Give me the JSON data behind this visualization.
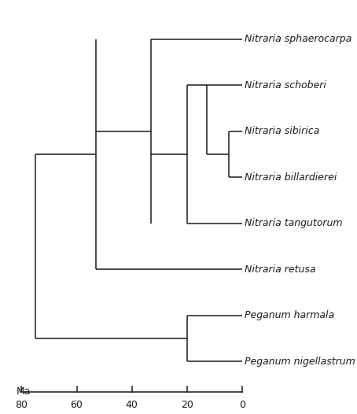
{
  "taxa": [
    "Nitraria sphaerocarpa",
    "Nitraria schoberi",
    "Nitraria sibirica",
    "Nitraria billardierei",
    "Nitraria tangutorum",
    "Nitraria retusa",
    "Peganum harmala",
    "Peganum nigellastrum"
  ],
  "taxa_y": [
    8,
    7,
    6,
    5,
    4,
    3,
    2,
    1
  ],
  "segments": [
    [
      [
        0,
        33
      ],
      [
        8,
        8
      ]
    ],
    [
      [
        0,
        13
      ],
      [
        7,
        7
      ]
    ],
    [
      [
        0,
        5
      ],
      [
        6,
        6
      ]
    ],
    [
      [
        0,
        5
      ],
      [
        5,
        5
      ]
    ],
    [
      [
        0,
        20
      ],
      [
        4,
        4
      ]
    ],
    [
      [
        0,
        53
      ],
      [
        3,
        3
      ]
    ],
    [
      [
        0,
        20
      ],
      [
        2,
        2
      ]
    ],
    [
      [
        0,
        20
      ],
      [
        1,
        1
      ]
    ],
    [
      [
        5,
        5
      ],
      [
        5,
        6
      ]
    ],
    [
      [
        5,
        13
      ],
      [
        5.5,
        5.5
      ]
    ],
    [
      [
        13,
        13
      ],
      [
        5.5,
        7
      ]
    ],
    [
      [
        13,
        20
      ],
      [
        7,
        7
      ]
    ],
    [
      [
        20,
        20
      ],
      [
        4,
        7
      ]
    ],
    [
      [
        20,
        33
      ],
      [
        5.5,
        5.5
      ]
    ],
    [
      [
        33,
        33
      ],
      [
        4,
        8
      ]
    ],
    [
      [
        33,
        53
      ],
      [
        6,
        6
      ]
    ],
    [
      [
        53,
        53
      ],
      [
        3,
        8
      ]
    ],
    [
      [
        53,
        75
      ],
      [
        5.5,
        5.5
      ]
    ],
    [
      [
        20,
        20
      ],
      [
        1,
        2
      ]
    ],
    [
      [
        20,
        75
      ],
      [
        1.5,
        1.5
      ]
    ],
    [
      [
        75,
        75
      ],
      [
        1.5,
        5.5
      ]
    ]
  ],
  "axis_ticks": [
    0,
    20,
    40,
    60,
    80
  ],
  "axis_tick_labels": [
    "0",
    "20",
    "40",
    "60",
    "80"
  ],
  "ma_label": "Ma",
  "line_color": "#1a1a1a",
  "line_width": 1.1,
  "font_size": 9,
  "bg_color": "#ffffff",
  "label_color": "#1a1a1a",
  "axis_y": 0.35,
  "y_min": 0.0,
  "y_max": 8.8,
  "x_age_max": 80,
  "x_age_min": 0
}
